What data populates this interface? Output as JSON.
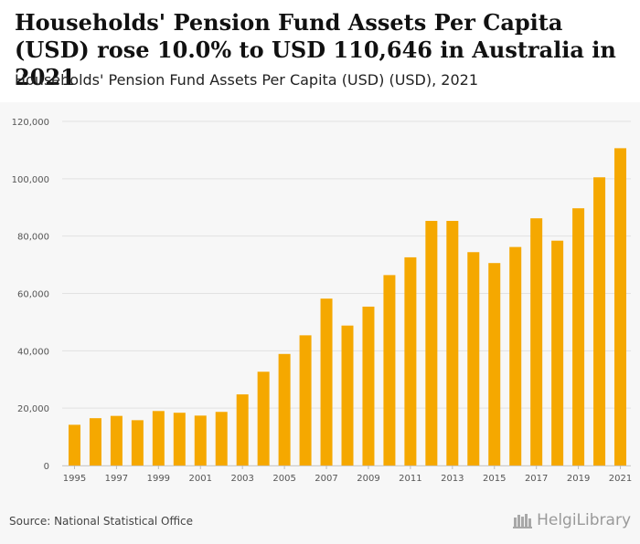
{
  "header": {
    "title": "Households' Pension Fund Assets Per Capita (USD) rose 10.0% to USD 110,646 in Australia in 2021",
    "subtitle": "Households' Pension Fund Assets Per Capita (USD) (USD), 2021"
  },
  "footer": {
    "source": "Source: National Statistical Office",
    "logo_text": "HelgiLibrary"
  },
  "colors": {
    "bar": "#f5a800",
    "grid": "#e2e2e2",
    "tick_text": "#555555"
  },
  "chart_data": {
    "type": "bar",
    "title": "Households' Pension Fund Assets Per Capita (USD)",
    "xlabel": "",
    "ylabel": "",
    "ylim": [
      0,
      120000
    ],
    "yticks": [
      0,
      20000,
      40000,
      60000,
      80000,
      100000,
      120000
    ],
    "ytick_labels": [
      "0",
      "20,000",
      "40,000",
      "60,000",
      "80,000",
      "100,000",
      "120,000"
    ],
    "grid": true,
    "categories": [
      "1995",
      "1996",
      "1997",
      "1998",
      "1999",
      "2000",
      "2001",
      "2002",
      "2003",
      "2004",
      "2005",
      "2006",
      "2007",
      "2008",
      "2009",
      "2010",
      "2011",
      "2012",
      "2013",
      "2014",
      "2015",
      "2016",
      "2017",
      "2018",
      "2019",
      "2020",
      "2021"
    ],
    "xtick_labels": [
      "1995",
      "1997",
      "1999",
      "2001",
      "2003",
      "2005",
      "2007",
      "2009",
      "2011",
      "2013",
      "2015",
      "2017",
      "2019",
      "2021"
    ],
    "values": [
      14200,
      16500,
      17300,
      15800,
      19000,
      18400,
      17400,
      18700,
      24800,
      32700,
      38900,
      45400,
      58200,
      48800,
      55400,
      66400,
      72600,
      85300,
      85300,
      74400,
      70600,
      76200,
      86200,
      78400,
      89700,
      100500,
      110646
    ]
  }
}
